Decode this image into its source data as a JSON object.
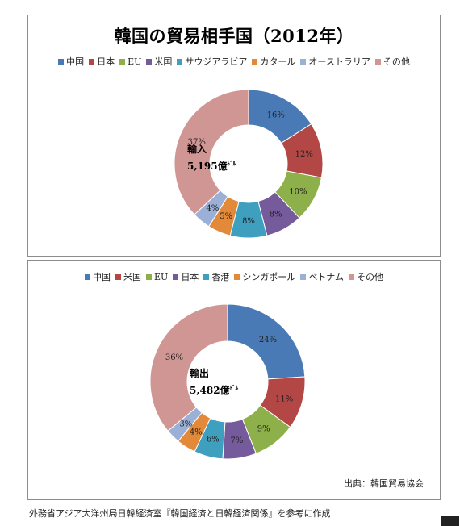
{
  "chart_data": [
    {
      "type": "pie",
      "title": "韓国の貿易相手国（2012年）",
      "center_label": "輸入",
      "center_value": "5,195億",
      "center_unit": "ﾄﾞﾙ",
      "categories": [
        "中国",
        "日本",
        "EU",
        "米国",
        "サウジアラビア",
        "カタール",
        "オーストラリア",
        "その他"
      ],
      "values": [
        16,
        12,
        10,
        8,
        8,
        5,
        4,
        37
      ],
      "labels": [
        "16%",
        "12%",
        "10%",
        "8%",
        "8%",
        "5%",
        "4%",
        "37%"
      ],
      "colors": [
        "#4a7ab5",
        "#b24745",
        "#8eb04a",
        "#765b9c",
        "#3f9fbe",
        "#e38a3a",
        "#9bb0d6",
        "#d09694"
      ],
      "legend_position": "top"
    },
    {
      "type": "pie",
      "center_label": "輸出",
      "center_value": "5,482億",
      "center_unit": "ﾄﾞﾙ",
      "categories": [
        "中国",
        "米国",
        "EU",
        "日本",
        "香港",
        "シンガポール",
        "ベトナム",
        "その他"
      ],
      "values": [
        24,
        11,
        9,
        7,
        6,
        4,
        3,
        36
      ],
      "labels": [
        "24%",
        "11%",
        "9%",
        "7%",
        "6%",
        "4%",
        "3%",
        "36%"
      ],
      "colors": [
        "#4a7ab5",
        "#b24745",
        "#8eb04a",
        "#765b9c",
        "#3f9fbe",
        "#e38a3a",
        "#9bb0d6",
        "#d09694"
      ],
      "legend_position": "top"
    }
  ],
  "source": "出典：韓国貿易協会",
  "footnote": "外務省アジア大洋州局日韓経済室『韓国経済と日韓経済関係』を参考に作成"
}
